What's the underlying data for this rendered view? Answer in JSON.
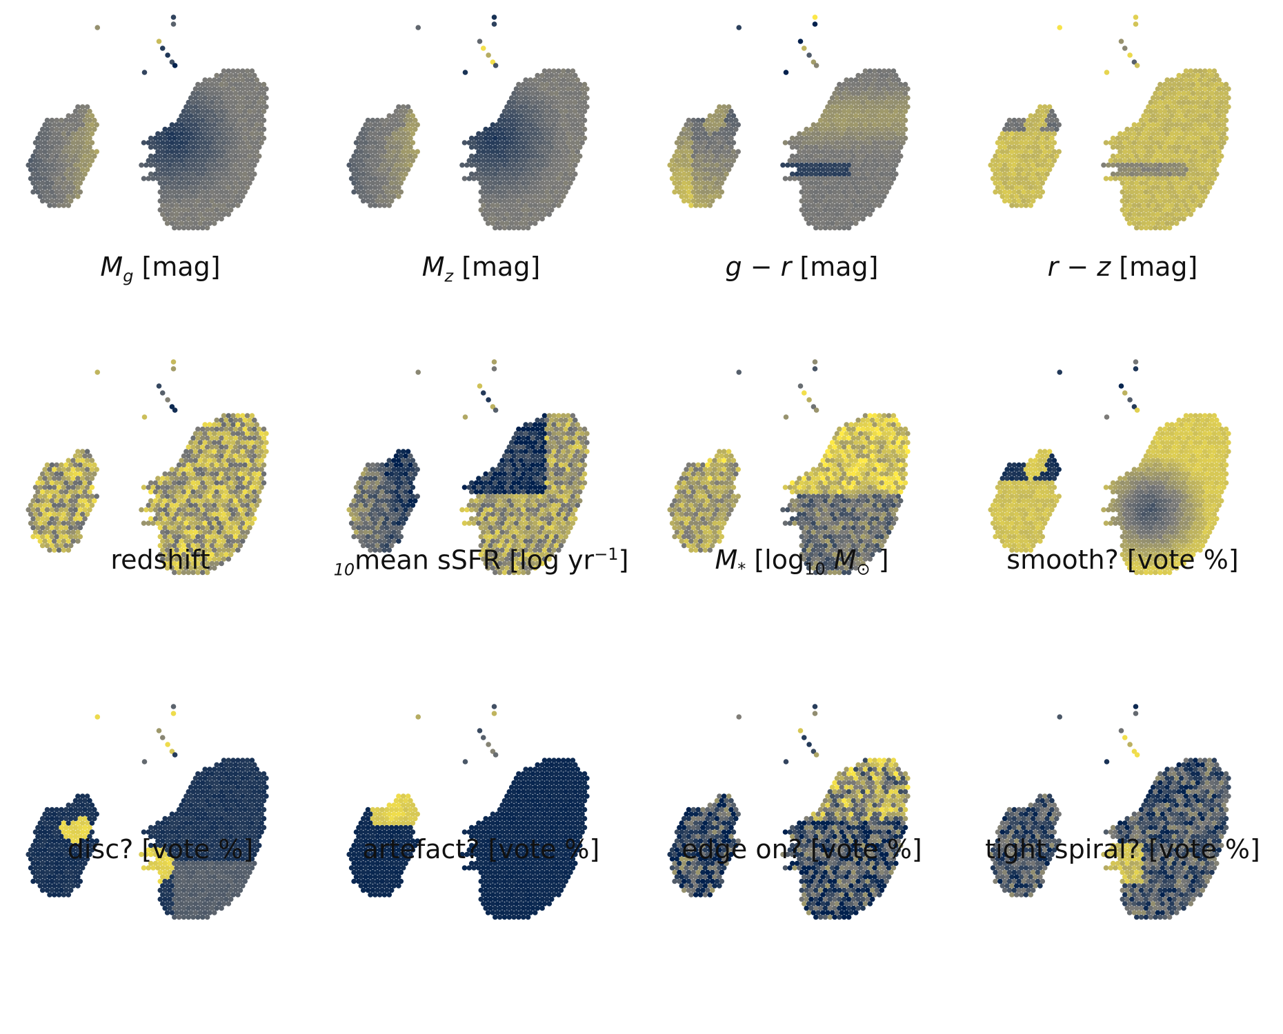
{
  "figure": {
    "colormap": {
      "low": "#00204d",
      "mid": "#7c7b78",
      "high": "#ffea46"
    },
    "panels": [
      {
        "id": "Mg",
        "caption": {
          "base": "M",
          "sub": "g",
          "rest": "  [mag]"
        },
        "pattern": "dark-upper-left"
      },
      {
        "id": "Mz",
        "caption": {
          "base": "M",
          "sub": "z",
          "rest": "  [mag]"
        },
        "pattern": "dark-upper-left"
      },
      {
        "id": "g-r",
        "caption": {
          "math": "g − r",
          "rest": "  [mag]"
        },
        "pattern": "gray-yellow-band"
      },
      {
        "id": "r-z",
        "caption": {
          "math": "r − z",
          "rest": "  [mag]"
        },
        "pattern": "yellow"
      },
      {
        "id": "redshift",
        "caption": {
          "text": "redshift"
        },
        "pattern": "noisy-yellow"
      },
      {
        "id": "ssfr",
        "caption": {
          "text": "mean sSFR [log",
          "sub": "10",
          "text2": " yr",
          "sup": "−1",
          "text3": "]"
        },
        "pattern": "dark-top-noisy"
      },
      {
        "id": "mstar",
        "caption": {
          "math": "M",
          "sub": "*",
          "text": "  [log",
          "sub2": "10",
          "math2": " M",
          "sub3": "⊙",
          "text2": " ]"
        },
        "pattern": "yellow-top-noisy"
      },
      {
        "id": "smooth",
        "caption": {
          "text": "smooth? [vote %]"
        },
        "pattern": "yellow-dark-center"
      },
      {
        "id": "disc",
        "caption": {
          "text": "disc? [vote %]"
        },
        "pattern": "dark-yellow-center"
      },
      {
        "id": "artefact",
        "caption": {
          "text": "artefact? [vote %]"
        },
        "pattern": "dark-yellow-arm"
      },
      {
        "id": "edgeon",
        "caption": {
          "text": "edge on? [vote %]"
        },
        "pattern": "dark-noisy-yellow"
      },
      {
        "id": "tight",
        "caption": {
          "text": "tight spiral? [vote %]"
        },
        "pattern": "gray-noisy"
      }
    ]
  }
}
